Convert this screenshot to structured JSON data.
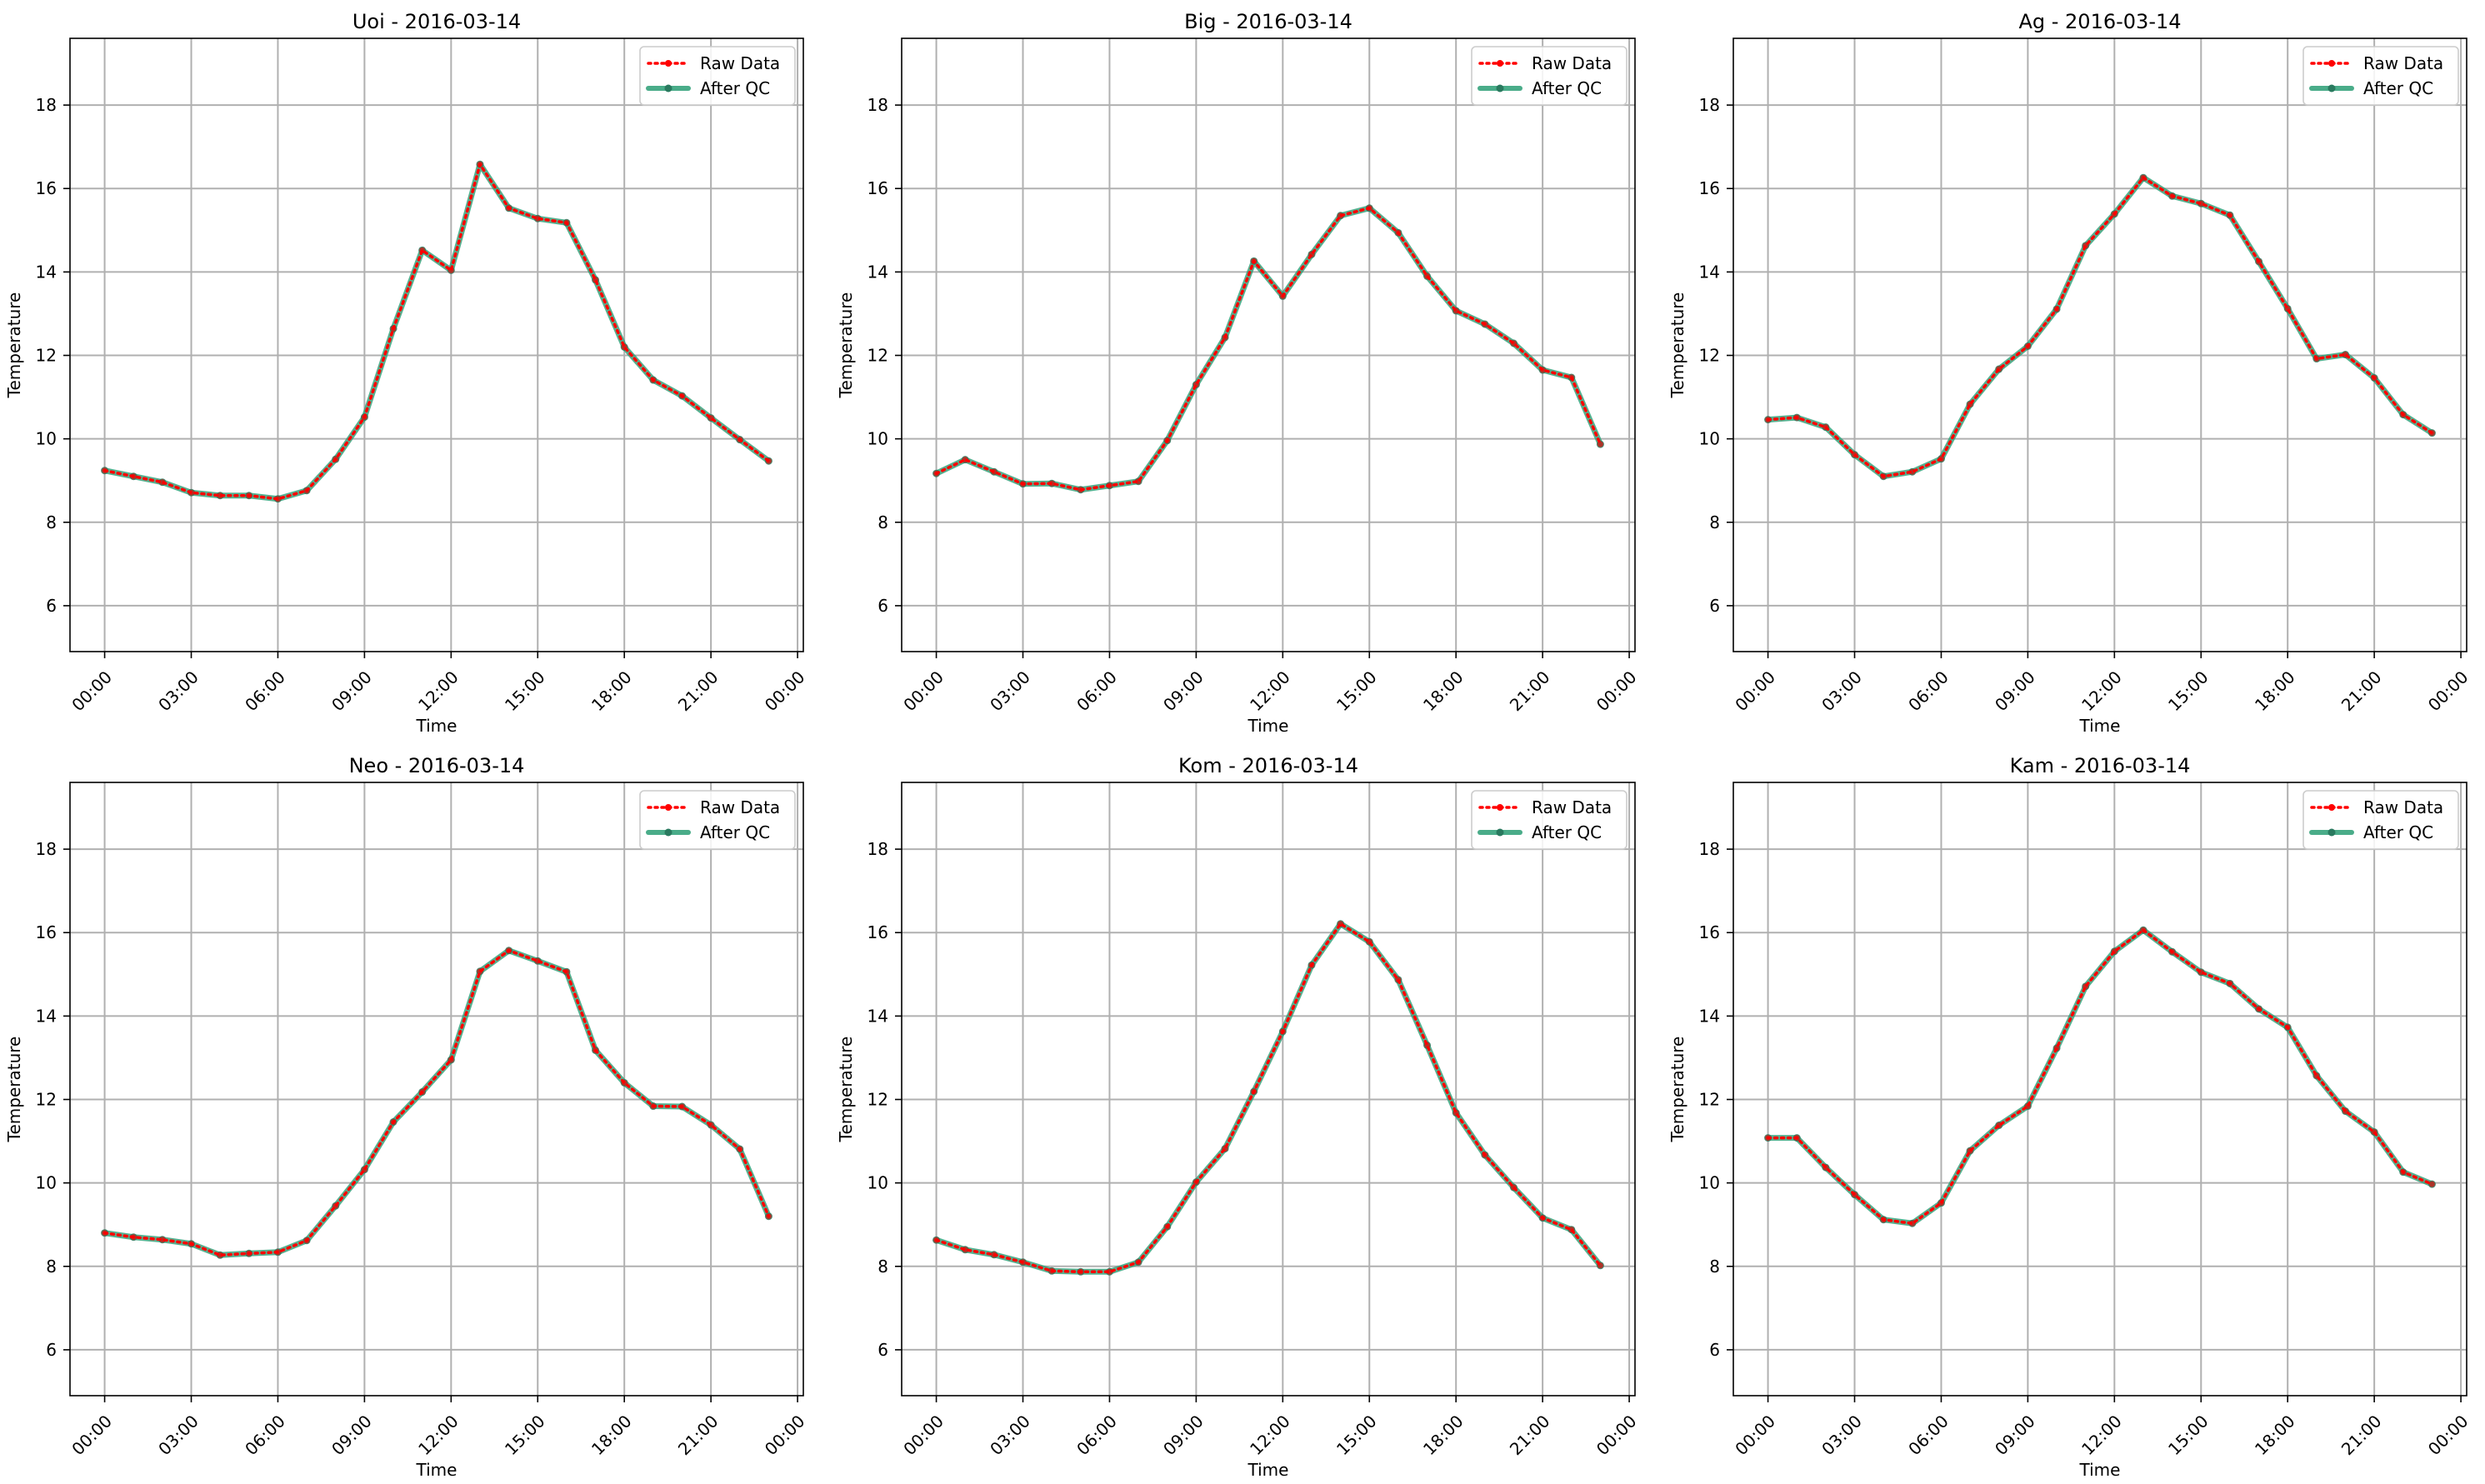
{
  "chart_data": [
    {
      "type": "line",
      "title": "Uoi - 2016-03-14",
      "xlabel": "Time",
      "ylabel": "Temperature",
      "x": [
        "00:00",
        "01:00",
        "02:00",
        "03:00",
        "04:00",
        "05:00",
        "06:00",
        "07:00",
        "08:00",
        "09:00",
        "10:00",
        "11:00",
        "12:00",
        "13:00",
        "14:00",
        "15:00",
        "16:00",
        "17:00",
        "18:00",
        "19:00",
        "20:00",
        "21:00",
        "22:00",
        "23:00"
      ],
      "xticks": [
        "00:00",
        "03:00",
        "06:00",
        "09:00",
        "12:00",
        "15:00",
        "18:00",
        "21:00",
        "00:00"
      ],
      "xlim": [
        -1.2,
        24.2
      ],
      "ylim": [
        4.9,
        19.6
      ],
      "yticks": [
        6,
        8,
        10,
        12,
        14,
        16,
        18
      ],
      "grid": true,
      "legend_position": "top-right",
      "series": [
        {
          "name": "Raw Data",
          "color": "#ff0000",
          "style": "dotted",
          "values": [
            9.24,
            9.1,
            8.96,
            8.71,
            8.64,
            8.64,
            8.56,
            8.76,
            9.51,
            10.52,
            12.64,
            14.52,
            14.04,
            16.58,
            15.53,
            15.28,
            15.18,
            13.81,
            12.2,
            11.41,
            11.03,
            10.5,
            9.98,
            9.47
          ]
        },
        {
          "name": "After QC",
          "color": "#2a9d74",
          "style": "solid",
          "values": [
            9.24,
            9.1,
            8.96,
            8.71,
            8.64,
            8.64,
            8.56,
            8.76,
            9.51,
            10.52,
            12.64,
            14.52,
            14.04,
            16.58,
            15.53,
            15.28,
            15.18,
            13.81,
            12.2,
            11.41,
            11.03,
            10.5,
            9.98,
            9.47
          ]
        }
      ]
    },
    {
      "type": "line",
      "title": "Big - 2016-03-14",
      "xlabel": "Time",
      "ylabel": "Temperature",
      "x": [
        "00:00",
        "01:00",
        "02:00",
        "03:00",
        "04:00",
        "05:00",
        "06:00",
        "07:00",
        "08:00",
        "09:00",
        "10:00",
        "11:00",
        "12:00",
        "13:00",
        "14:00",
        "15:00",
        "16:00",
        "17:00",
        "18:00",
        "19:00",
        "20:00",
        "21:00",
        "22:00",
        "23:00"
      ],
      "xticks": [
        "00:00",
        "03:00",
        "06:00",
        "09:00",
        "12:00",
        "15:00",
        "18:00",
        "21:00",
        "00:00"
      ],
      "xlim": [
        -1.2,
        24.2
      ],
      "ylim": [
        4.9,
        19.6
      ],
      "yticks": [
        6,
        8,
        10,
        12,
        14,
        16,
        18
      ],
      "grid": true,
      "legend_position": "top-right",
      "series": [
        {
          "name": "Raw Data",
          "color": "#ff0000",
          "style": "dotted",
          "values": [
            9.17,
            9.5,
            9.21,
            8.92,
            8.93,
            8.78,
            8.88,
            8.98,
            9.96,
            11.3,
            12.43,
            14.26,
            13.42,
            14.42,
            15.35,
            15.53,
            14.94,
            13.9,
            13.07,
            12.75,
            12.29,
            11.65,
            11.47,
            9.87
          ]
        },
        {
          "name": "After QC",
          "color": "#2a9d74",
          "style": "solid",
          "values": [
            9.17,
            9.5,
            9.21,
            8.92,
            8.93,
            8.78,
            8.88,
            8.98,
            9.96,
            11.3,
            12.43,
            14.26,
            13.42,
            14.42,
            15.35,
            15.53,
            14.94,
            13.9,
            13.07,
            12.75,
            12.29,
            11.65,
            11.47,
            9.87
          ]
        }
      ]
    },
    {
      "type": "line",
      "title": "Ag - 2016-03-14",
      "xlabel": "Time",
      "ylabel": "Temperature",
      "x": [
        "00:00",
        "01:00",
        "02:00",
        "03:00",
        "04:00",
        "05:00",
        "06:00",
        "07:00",
        "08:00",
        "09:00",
        "10:00",
        "11:00",
        "12:00",
        "13:00",
        "14:00",
        "15:00",
        "16:00",
        "17:00",
        "18:00",
        "19:00",
        "20:00",
        "21:00",
        "22:00",
        "23:00"
      ],
      "xticks": [
        "00:00",
        "03:00",
        "06:00",
        "09:00",
        "12:00",
        "15:00",
        "18:00",
        "21:00",
        "00:00"
      ],
      "xlim": [
        -1.2,
        24.2
      ],
      "ylim": [
        4.9,
        19.6
      ],
      "yticks": [
        6,
        8,
        10,
        12,
        14,
        16,
        18
      ],
      "grid": true,
      "legend_position": "top-right",
      "series": [
        {
          "name": "Raw Data",
          "color": "#ff0000",
          "style": "dotted",
          "values": [
            10.46,
            10.51,
            10.28,
            9.62,
            9.1,
            9.21,
            9.52,
            10.83,
            11.67,
            12.22,
            13.11,
            14.63,
            15.39,
            16.26,
            15.82,
            15.64,
            15.36,
            14.25,
            13.12,
            11.92,
            12.02,
            11.46,
            10.58,
            10.14
          ]
        },
        {
          "name": "After QC",
          "color": "#2a9d74",
          "style": "solid",
          "values": [
            10.46,
            10.51,
            10.28,
            9.62,
            9.1,
            9.21,
            9.52,
            10.83,
            11.67,
            12.22,
            13.11,
            14.63,
            15.39,
            16.26,
            15.82,
            15.64,
            15.36,
            14.25,
            13.12,
            11.92,
            12.02,
            11.46,
            10.58,
            10.14
          ]
        }
      ]
    },
    {
      "type": "line",
      "title": "Neo - 2016-03-14",
      "xlabel": "Time",
      "ylabel": "Temperature",
      "x": [
        "00:00",
        "01:00",
        "02:00",
        "03:00",
        "04:00",
        "05:00",
        "06:00",
        "07:00",
        "08:00",
        "09:00",
        "10:00",
        "11:00",
        "12:00",
        "13:00",
        "14:00",
        "15:00",
        "16:00",
        "17:00",
        "18:00",
        "19:00",
        "20:00",
        "21:00",
        "22:00",
        "23:00"
      ],
      "xticks": [
        "00:00",
        "03:00",
        "06:00",
        "09:00",
        "12:00",
        "15:00",
        "18:00",
        "21:00",
        "00:00"
      ],
      "xlim": [
        -1.2,
        24.2
      ],
      "ylim": [
        4.9,
        19.6
      ],
      "yticks": [
        6,
        8,
        10,
        12,
        14,
        16,
        18
      ],
      "grid": true,
      "legend_position": "top-right",
      "series": [
        {
          "name": "Raw Data",
          "color": "#ff0000",
          "style": "dotted",
          "values": [
            8.8,
            8.7,
            8.64,
            8.54,
            8.27,
            8.31,
            8.34,
            8.62,
            9.45,
            10.32,
            11.46,
            12.18,
            12.95,
            15.07,
            15.57,
            15.32,
            15.06,
            13.18,
            12.4,
            11.84,
            11.83,
            11.39,
            10.81,
            9.2
          ]
        },
        {
          "name": "After QC",
          "color": "#2a9d74",
          "style": "solid",
          "values": [
            8.8,
            8.7,
            8.64,
            8.54,
            8.27,
            8.31,
            8.34,
            8.62,
            9.45,
            10.32,
            11.46,
            12.18,
            12.95,
            15.07,
            15.57,
            15.32,
            15.06,
            13.18,
            12.4,
            11.84,
            11.83,
            11.39,
            10.81,
            9.2
          ]
        }
      ]
    },
    {
      "type": "line",
      "title": "Kom - 2016-03-14",
      "xlabel": "Time",
      "ylabel": "Temperature",
      "x": [
        "00:00",
        "01:00",
        "02:00",
        "03:00",
        "04:00",
        "05:00",
        "06:00",
        "07:00",
        "08:00",
        "09:00",
        "10:00",
        "11:00",
        "12:00",
        "13:00",
        "14:00",
        "15:00",
        "16:00",
        "17:00",
        "18:00",
        "19:00",
        "20:00",
        "21:00",
        "22:00",
        "23:00"
      ],
      "xticks": [
        "00:00",
        "03:00",
        "06:00",
        "09:00",
        "12:00",
        "15:00",
        "18:00",
        "21:00",
        "00:00"
      ],
      "xlim": [
        -1.2,
        24.2
      ],
      "ylim": [
        4.9,
        19.6
      ],
      "yticks": [
        6,
        8,
        10,
        12,
        14,
        16,
        18
      ],
      "grid": true,
      "legend_position": "top-right",
      "series": [
        {
          "name": "Raw Data",
          "color": "#ff0000",
          "style": "dotted",
          "values": [
            8.63,
            8.4,
            8.28,
            8.1,
            7.89,
            7.87,
            7.87,
            8.1,
            8.95,
            10.02,
            10.82,
            12.19,
            13.63,
            15.22,
            16.21,
            15.78,
            14.87,
            13.3,
            11.68,
            10.67,
            9.89,
            9.16,
            8.88,
            8.02
          ]
        },
        {
          "name": "After QC",
          "color": "#2a9d74",
          "style": "solid",
          "values": [
            8.63,
            8.4,
            8.28,
            8.1,
            7.89,
            7.87,
            7.87,
            8.1,
            8.95,
            10.02,
            10.82,
            12.19,
            13.63,
            15.22,
            16.21,
            15.78,
            14.87,
            13.3,
            11.68,
            10.67,
            9.89,
            9.16,
            8.88,
            8.02
          ]
        }
      ]
    },
    {
      "type": "line",
      "title": "Kam - 2016-03-14",
      "xlabel": "Time",
      "ylabel": "Temperature",
      "x": [
        "00:00",
        "01:00",
        "02:00",
        "03:00",
        "04:00",
        "05:00",
        "06:00",
        "07:00",
        "08:00",
        "09:00",
        "10:00",
        "11:00",
        "12:00",
        "13:00",
        "14:00",
        "15:00",
        "16:00",
        "17:00",
        "18:00",
        "19:00",
        "20:00",
        "21:00",
        "22:00",
        "23:00"
      ],
      "xticks": [
        "00:00",
        "03:00",
        "06:00",
        "09:00",
        "12:00",
        "15:00",
        "18:00",
        "21:00",
        "00:00"
      ],
      "xlim": [
        -1.2,
        24.2
      ],
      "ylim": [
        4.9,
        19.6
      ],
      "yticks": [
        6,
        8,
        10,
        12,
        14,
        16,
        18
      ],
      "grid": true,
      "legend_position": "top-right",
      "series": [
        {
          "name": "Raw Data",
          "color": "#ff0000",
          "style": "dotted",
          "values": [
            11.08,
            11.08,
            10.37,
            9.72,
            9.12,
            9.03,
            9.52,
            10.77,
            11.38,
            11.84,
            13.23,
            14.71,
            15.55,
            16.06,
            15.54,
            15.05,
            14.78,
            14.17,
            13.73,
            12.57,
            11.72,
            11.22,
            10.26,
            9.97
          ]
        },
        {
          "name": "After QC",
          "color": "#2a9d74",
          "style": "solid",
          "values": [
            11.08,
            11.08,
            10.37,
            9.72,
            9.12,
            9.03,
            9.52,
            10.77,
            11.38,
            11.84,
            13.23,
            14.71,
            15.55,
            16.06,
            15.54,
            15.05,
            14.78,
            14.17,
            13.73,
            12.57,
            11.72,
            11.22,
            10.26,
            9.97
          ]
        }
      ]
    }
  ]
}
